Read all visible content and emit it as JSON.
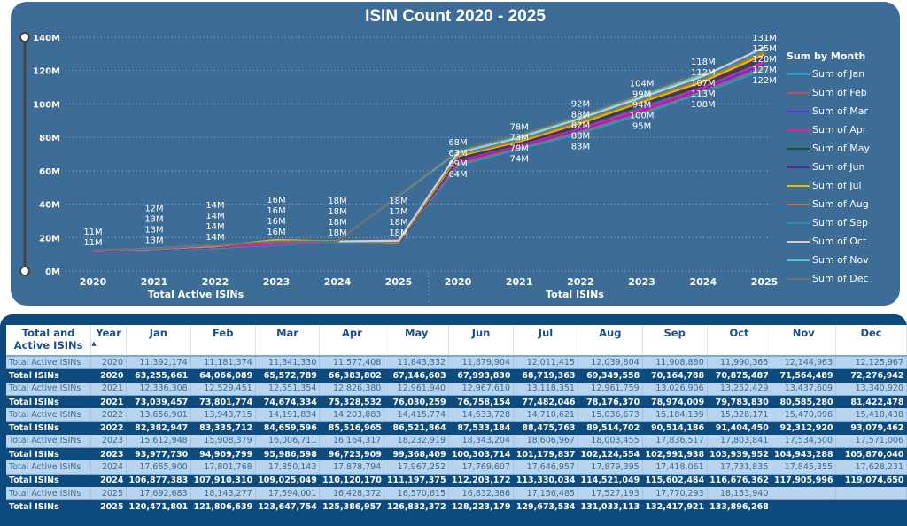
{
  "chart_data": {
    "type": "line",
    "title": "ISIN Count 2020 - 2025",
    "x_groups": [
      {
        "label": "Total Active ISINs",
        "years": [
          "2020",
          "2021",
          "2022",
          "2023",
          "2024",
          "2025"
        ]
      },
      {
        "label": "Total ISINs",
        "years": [
          "2020",
          "2021",
          "2022",
          "2023",
          "2024",
          "2025"
        ]
      }
    ],
    "y_ticks": [
      "0M",
      "20M",
      "40M",
      "60M",
      "80M",
      "100M",
      "120M",
      "140M"
    ],
    "ylim": [
      0,
      140000000
    ],
    "grid": true,
    "legend_title": "Sum by Month",
    "legend_position": "right",
    "series": [
      {
        "name": "Sum of Jan",
        "color": "#1f9bcf"
      },
      {
        "name": "Sum of Feb",
        "color": "#b05a5a"
      },
      {
        "name": "Sum of Mar",
        "color": "#5a2ff0"
      },
      {
        "name": "Sum of Apr",
        "color": "#e020a0"
      },
      {
        "name": "Sum of May",
        "color": "#0d5a2a"
      },
      {
        "name": "Sum of Jun",
        "color": "#6a1f8f"
      },
      {
        "name": "Sum of Jul",
        "color": "#e0c000"
      },
      {
        "name": "Sum of Aug",
        "color": "#c07a20"
      },
      {
        "name": "Sum of Sep",
        "color": "#2a8fb0"
      },
      {
        "name": "Sum of Oct",
        "color": "#d8cccc"
      },
      {
        "name": "Sum of Nov",
        "color": "#50c8c0"
      },
      {
        "name": "Sum of Dec",
        "color": "#707070"
      }
    ],
    "data_labels": [
      [
        "11M",
        "11M"
      ],
      [
        "12M",
        "13M",
        "13M",
        "13M"
      ],
      [
        "14M",
        "14M",
        "14M",
        "14M"
      ],
      [
        "16M",
        "16M",
        "16M",
        "16M"
      ],
      [
        "18M",
        "18M",
        "18M",
        "18M"
      ],
      [
        "18M",
        "17M",
        "18M",
        "18M"
      ],
      [
        "68M",
        "63M",
        "69M",
        "64M"
      ],
      [
        "78M",
        "73M",
        "79M",
        "74M"
      ],
      [
        "92M",
        "88M",
        "82M",
        "88M",
        "83M"
      ],
      [
        "104M",
        "99M",
        "94M",
        "100M",
        "95M"
      ],
      [
        "118M",
        "112M",
        "107M",
        "113M",
        "108M"
      ],
      [
        "131M",
        "125M",
        "120M",
        "127M",
        "122M"
      ]
    ]
  },
  "table": {
    "headers": [
      "Total and Active ISINs",
      "Year",
      "Jan",
      "Feb",
      "Mar",
      "Apr",
      "May",
      "Jun",
      "Jul",
      "Aug",
      "Sep",
      "Oct",
      "Nov",
      "Dec"
    ],
    "sort_indicator": "▲",
    "rows": [
      [
        "Total Active ISINs",
        "2020",
        "11,392,174",
        "11,181,374",
        "11,341,330",
        "11,577,408",
        "11,843,332",
        "11,879,904",
        "12,011,415",
        "12,039,804",
        "11,908,880",
        "11,990,365",
        "12,144,963",
        "12,125,967"
      ],
      [
        "Total ISINs",
        "2020",
        "63,255,661",
        "64,066,089",
        "65,572,789",
        "66,383,802",
        "67,146,603",
        "67,993,830",
        "68,719,363",
        "69,349,558",
        "70,164,788",
        "70,875,487",
        "71,564,489",
        "72,276,942"
      ],
      [
        "Total Active ISINs",
        "2021",
        "12,336,308",
        "12,529,451",
        "12,551,354",
        "12,826,380",
        "12,961,940",
        "12,967,610",
        "13,118,351",
        "12,961,759",
        "13,026,906",
        "13,252,429",
        "13,437,609",
        "13,340,920"
      ],
      [
        "Total ISINs",
        "2021",
        "73,039,457",
        "73,801,774",
        "74,674,334",
        "75,328,532",
        "76,030,259",
        "76,758,154",
        "77,482,046",
        "78,176,370",
        "78,974,009",
        "79,783,830",
        "80,585,280",
        "81,422,478"
      ],
      [
        "Total Active ISINs",
        "2022",
        "13,656,901",
        "13,943,715",
        "14,191,834",
        "14,203,883",
        "14,415,774",
        "14,533,728",
        "14,710,621",
        "15,036,673",
        "15,184,139",
        "15,328,171",
        "15,470,096",
        "15,418,438"
      ],
      [
        "Total ISINs",
        "2022",
        "82,382,947",
        "83,335,712",
        "84,659,596",
        "85,516,965",
        "86,521,864",
        "87,533,184",
        "88,475,763",
        "89,514,702",
        "90,514,186",
        "91,404,450",
        "92,312,920",
        "93,079,462"
      ],
      [
        "Total Active ISINs",
        "2023",
        "15,612,948",
        "15,908,379",
        "16,006,711",
        "16,164,317",
        "18,232,919",
        "18,343,204",
        "18,606,967",
        "18,003,455",
        "17,836,517",
        "17,803,841",
        "17,534,500",
        "17,571,006"
      ],
      [
        "Total ISINs",
        "2023",
        "93,977,730",
        "94,909,799",
        "95,986,598",
        "96,723,909",
        "99,368,409",
        "100,303,714",
        "101,179,837",
        "102,124,554",
        "102,991,938",
        "103,939,952",
        "104,943,288",
        "105,870,040"
      ],
      [
        "Total Active ISINs",
        "2024",
        "17,665,900",
        "17,801,768",
        "17,850,143",
        "17,878,794",
        "17,967,252",
        "17,769,607",
        "17,646,957",
        "17,879,395",
        "17,418,061",
        "17,731,835",
        "17,845,355",
        "17,628,231"
      ],
      [
        "Total ISINs",
        "2024",
        "106,877,383",
        "107,910,310",
        "109,025,049",
        "110,120,170",
        "111,197,375",
        "112,203,172",
        "113,330,034",
        "114,521,049",
        "115,602,484",
        "116,676,362",
        "117,905,996",
        "119,074,650"
      ],
      [
        "Total Active ISINs",
        "2025",
        "17,692,683",
        "18,143,277",
        "17,594,001",
        "16,428,372",
        "16,570,615",
        "16,832,386",
        "17,156,485",
        "17,527,193",
        "17,770,293",
        "18,153,940",
        "",
        ""
      ],
      [
        "Total ISINs",
        "2025",
        "120,471,801",
        "121,806,639",
        "123,647,754",
        "125,386,957",
        "126,832,372",
        "128,223,179",
        "129,673,534",
        "131,033,113",
        "132,417,921",
        "133,896,268",
        "",
        ""
      ]
    ]
  }
}
